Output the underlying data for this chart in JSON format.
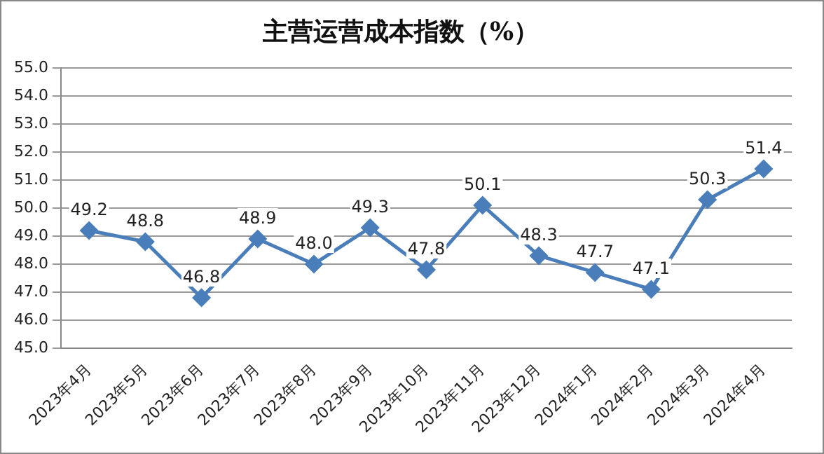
{
  "chart_data": {
    "type": "line",
    "title": "主营运营成本指数（%）",
    "categories": [
      "2023年4月",
      "2023年5月",
      "2023年6月",
      "2023年7月",
      "2023年8月",
      "2023年9月",
      "2023年10月",
      "2023年11月",
      "2023年12月",
      "2024年1月",
      "2024年2月",
      "2024年3月",
      "2024年4月"
    ],
    "series": [
      {
        "color": "#4a7ebb",
        "values": [
          49.2,
          48.8,
          46.8,
          48.9,
          48.0,
          49.3,
          47.8,
          50.1,
          48.3,
          47.7,
          47.1,
          50.3,
          51.4
        ],
        "value_labels": [
          "49.2",
          "48.8",
          "46.8",
          "48.9",
          "48.0",
          "49.3",
          "47.8",
          "50.1",
          "48.3",
          "47.7",
          "47.1",
          "50.3",
          "51.4"
        ]
      }
    ],
    "ylim": [
      45,
      55
    ],
    "yticks": [
      {
        "value": 45,
        "label": "45.0"
      },
      {
        "value": 46,
        "label": "46.0"
      },
      {
        "value": 47,
        "label": "47.0"
      },
      {
        "value": 48,
        "label": "48.0"
      },
      {
        "value": 49,
        "label": "49.0"
      },
      {
        "value": 50,
        "label": "50.0"
      },
      {
        "value": 51,
        "label": "51.0"
      },
      {
        "value": 52,
        "label": "52.0"
      },
      {
        "value": 53,
        "label": "53.0"
      },
      {
        "value": 54,
        "label": "54.0"
      },
      {
        "value": 55,
        "label": "55.0"
      }
    ],
    "grid": "y",
    "legend": false,
    "marker": "diamond",
    "line_style": "solid"
  }
}
